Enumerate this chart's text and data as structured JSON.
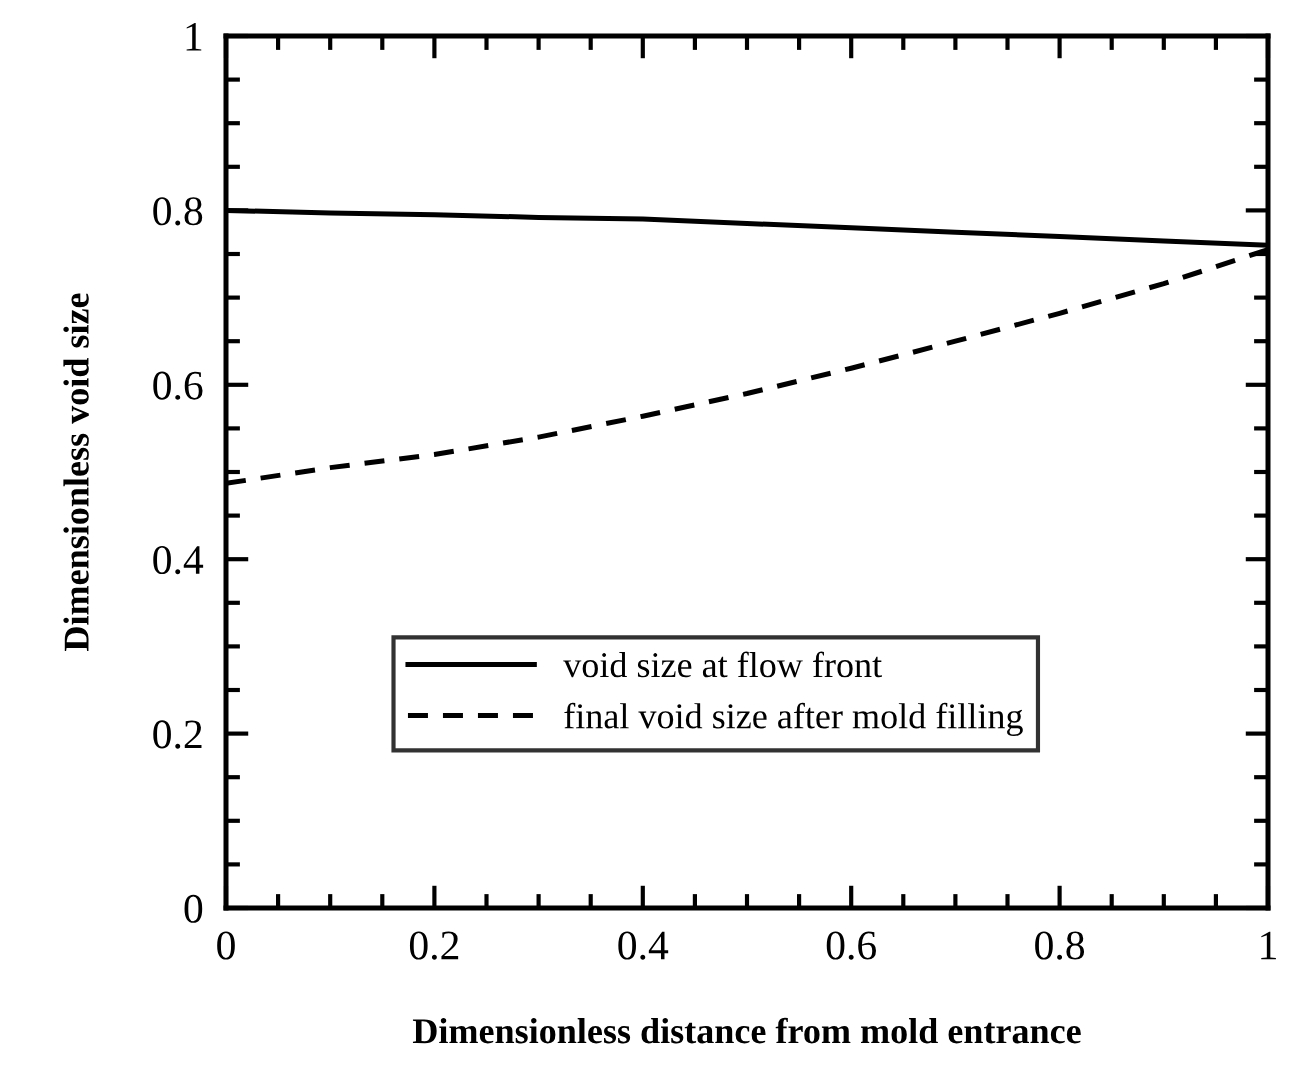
{
  "chart_data": {
    "type": "line",
    "xlabel": "Dimensionless distance from mold entrance",
    "ylabel": "Dimensionless void size",
    "x": [
      0,
      0.1,
      0.2,
      0.3,
      0.4,
      0.5,
      0.6,
      0.7,
      0.8,
      0.9,
      1
    ],
    "series": [
      {
        "name": "void size at flow front",
        "color": "#000000",
        "line_style": "solid",
        "values": [
          0.8,
          0.797,
          0.795,
          0.792,
          0.79,
          0.785,
          0.78,
          0.775,
          0.77,
          0.765,
          0.76
        ]
      },
      {
        "name": "final void size after mold filling",
        "color": "#000000",
        "line_style": "dashed",
        "values": [
          0.487,
          0.505,
          0.52,
          0.54,
          0.564,
          0.59,
          0.619,
          0.65,
          0.682,
          0.716,
          0.755
        ]
      }
    ],
    "xlim": [
      0,
      1
    ],
    "ylim": [
      0,
      1
    ],
    "xticks": [
      0,
      0.2,
      0.4,
      0.6,
      0.8,
      1
    ],
    "yticks": [
      0,
      0.2,
      0.4,
      0.6,
      0.8,
      1
    ],
    "legend": "bottom",
    "grid": false,
    "marker": "none"
  }
}
